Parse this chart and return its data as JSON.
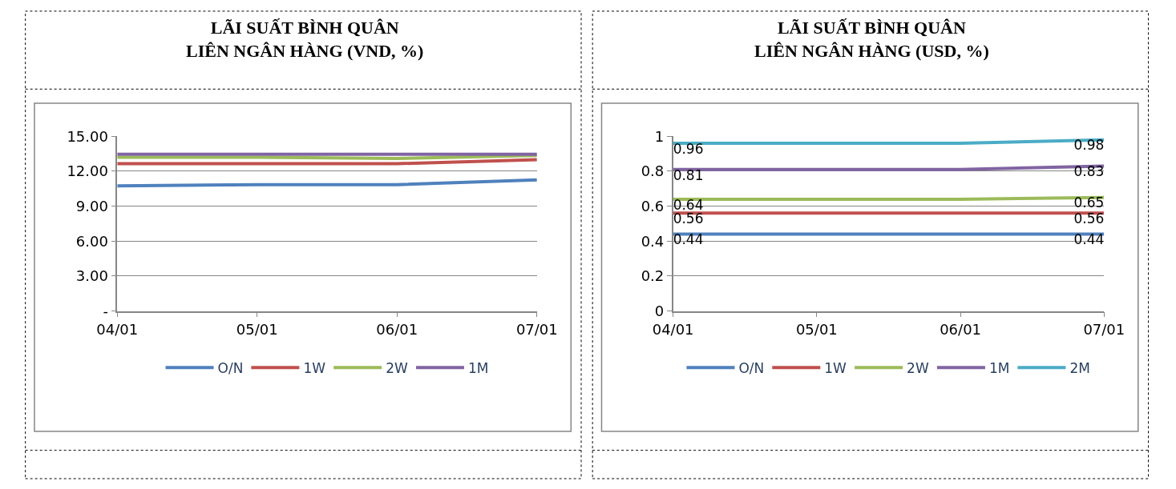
{
  "chart_data": [
    {
      "type": "line",
      "title": "LÃI SUẤT BÌNH QUÂN\nLIÊN NGÂN HÀNG (VND, %)",
      "categories": [
        "04/01",
        "05/01",
        "06/01",
        "07/01"
      ],
      "series": [
        {
          "name": "O/N",
          "color": "#4f81bd",
          "values": [
            10.75,
            10.85,
            10.85,
            11.25
          ]
        },
        {
          "name": "1W",
          "color": "#c0504d",
          "values": [
            12.65,
            12.65,
            12.65,
            13.0
          ]
        },
        {
          "name": "2W",
          "color": "#9bbb59",
          "values": [
            13.2,
            13.2,
            13.1,
            13.35
          ]
        },
        {
          "name": "1M",
          "color": "#8064a2",
          "values": [
            13.45,
            13.45,
            13.45,
            13.45
          ]
        }
      ],
      "ylim": [
        0,
        15
      ],
      "yticks": [
        {
          "value": 0,
          "label": "-"
        },
        {
          "value": 3,
          "label": "3.00"
        },
        {
          "value": 6,
          "label": "6.00"
        },
        {
          "value": 9,
          "label": "9.00"
        },
        {
          "value": 12,
          "label": "12.00"
        },
        {
          "value": 15,
          "label": "15.00"
        }
      ],
      "grid": "y",
      "legend": "bottom",
      "marker": "none",
      "line_style": "solid"
    },
    {
      "type": "line",
      "title": "LÃI SUẤT BÌNH QUÂN\nLIÊN NGÂN HÀNG (USD, %)",
      "categories": [
        "04/01",
        "05/01",
        "06/01",
        "07/01"
      ],
      "series": [
        {
          "name": "O/N",
          "color": "#4f81bd",
          "values": [
            0.44,
            0.44,
            0.44,
            0.44
          ],
          "value_labels": [
            "0.44",
            null,
            null,
            "0.44"
          ]
        },
        {
          "name": "1W",
          "color": "#c0504d",
          "values": [
            0.56,
            0.56,
            0.56,
            0.56
          ],
          "value_labels": [
            "0.56",
            null,
            null,
            "0.56"
          ]
        },
        {
          "name": "2W",
          "color": "#9bbb59",
          "values": [
            0.64,
            0.64,
            0.64,
            0.65
          ],
          "value_labels": [
            "0.64",
            null,
            null,
            "0.65"
          ]
        },
        {
          "name": "1M",
          "color": "#8064a2",
          "values": [
            0.81,
            0.81,
            0.81,
            0.83
          ],
          "value_labels": [
            "0.81",
            null,
            null,
            "0.83"
          ]
        },
        {
          "name": "2M",
          "color": "#4bacc6",
          "values": [
            0.96,
            0.96,
            0.96,
            0.98
          ],
          "value_labels": [
            "0.96",
            null,
            null,
            "0.98"
          ]
        }
      ],
      "ylim": [
        0,
        1
      ],
      "yticks": [
        0,
        0.2,
        0.4,
        0.6,
        0.8,
        1
      ],
      "grid": "y",
      "legend": "bottom",
      "marker": "none",
      "line_style": "solid"
    }
  ]
}
